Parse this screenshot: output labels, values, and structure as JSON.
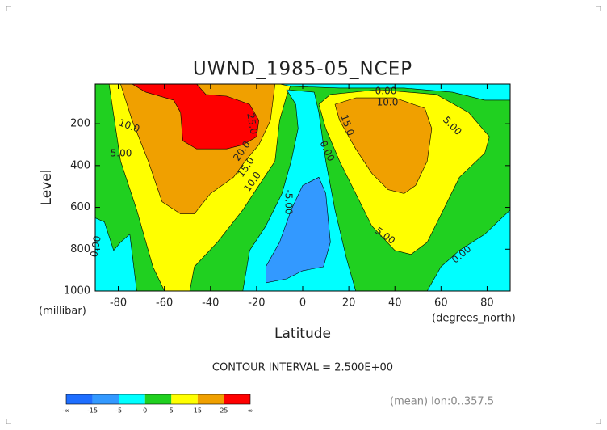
{
  "chart_data": {
    "type": "contour",
    "title": "UWND_1985-05_NCEP",
    "xlabel": "Latitude",
    "ylabel": "Level",
    "xunit": "(degrees_north)",
    "yunit": "(millibar)",
    "note": "CONTOUR INTERVAL = 2.500E+00",
    "footer": "(mean) lon:0..357.5",
    "xlim": [
      -90,
      90
    ],
    "ylim": [
      10,
      1000
    ],
    "xticks": [
      -80,
      -60,
      -40,
      -20,
      0,
      20,
      40,
      60,
      80
    ],
    "yticks": [
      200,
      400,
      600,
      800,
      1000
    ],
    "base_color": "#20d020",
    "regions": [
      {
        "color": "#ffff00",
        "lat": [
          -84,
          -79,
          -72,
          -65,
          -60,
          -49,
          -47,
          -37,
          -26,
          -19,
          -12,
          -10,
          -7,
          -5
        ],
        "level": [
          10,
          379,
          612,
          884,
          1000,
          1000,
          884,
          767,
          612,
          495,
          379,
          184,
          68,
          10
        ]
      },
      {
        "color": "#f0a000",
        "lat": [
          -79,
          -74,
          -67,
          -61,
          -53,
          -47,
          -40,
          -30,
          -25,
          -19,
          -14,
          -12
        ],
        "level": [
          10,
          184,
          379,
          573,
          631,
          631,
          534,
          456,
          379,
          301,
          184,
          10
        ]
      },
      {
        "color": "#ff0000",
        "lat": [
          -74,
          -68,
          -56,
          -53,
          -52,
          -46,
          -33,
          -26,
          -20,
          -19,
          -23,
          -33,
          -42,
          -46
        ],
        "level": [
          10,
          49,
          87,
          146,
          282,
          320,
          320,
          301,
          262,
          184,
          107,
          68,
          60,
          10
        ]
      },
      {
        "color": "#ffff00",
        "lat": [
          7,
          12,
          33,
          58,
          72,
          81,
          79,
          68,
          61,
          54,
          47,
          40,
          30,
          23,
          16,
          10
        ],
        "level": [
          107,
          60,
          37,
          60,
          146,
          262,
          340,
          456,
          612,
          767,
          825,
          806,
          689,
          534,
          379,
          223
        ]
      },
      {
        "color": "#f0a000",
        "lat": [
          14,
          23,
          40,
          53,
          56,
          54,
          49,
          44,
          37,
          30,
          23,
          16
        ],
        "level": [
          107,
          76,
          76,
          126,
          223,
          379,
          495,
          534,
          515,
          437,
          320,
          184
        ]
      },
      {
        "color": "#00ffff",
        "lat": [
          -7,
          -3,
          -2,
          -5,
          -9,
          -16,
          -23,
          -26,
          23,
          19,
          14,
          10,
          7,
          5
        ],
        "level": [
          37,
          107,
          223,
          379,
          534,
          689,
          806,
          1000,
          1000,
          845,
          612,
          379,
          146,
          49
        ]
      },
      {
        "color": "#00ffff",
        "lat": [
          -10,
          90,
          90,
          79,
          65,
          44,
          16,
          -5
        ],
        "level": [
          10,
          10,
          87,
          87,
          49,
          29,
          29,
          21
        ]
      },
      {
        "color": "#00ffff",
        "lat": [
          90,
          79,
          68,
          60,
          54,
          90
        ],
        "level": [
          612,
          728,
          806,
          884,
          1000,
          1000
        ]
      },
      {
        "color": "#00ffff",
        "lat": [
          -90,
          -86,
          -82,
          -79,
          -75,
          -72,
          -90
        ],
        "level": [
          650,
          670,
          806,
          767,
          728,
          1000,
          1000
        ]
      },
      {
        "color": "#3399ff",
        "lat": [
          0,
          7,
          10,
          12,
          9,
          0,
          -7,
          -16,
          -16,
          -10,
          -5
        ],
        "level": [
          495,
          456,
          534,
          767,
          884,
          903,
          942,
          961,
          884,
          767,
          612
        ]
      }
    ],
    "contour_labels": [
      {
        "value": 0,
        "label": "0.00"
      },
      {
        "value": 10,
        "label": "10.0"
      },
      {
        "value": 15,
        "label": "15.0"
      },
      {
        "value": 5,
        "label": "5.00"
      },
      {
        "value": 10,
        "label": "10.0"
      },
      {
        "value": 5,
        "label": "5.00"
      },
      {
        "value": 0,
        "label": "0.00"
      },
      {
        "value": -5,
        "label": "-5.00"
      },
      {
        "value": 5,
        "label": "5.00"
      },
      {
        "value": 0,
        "label": "0.00"
      },
      {
        "value": 0,
        "label": "0.00"
      },
      {
        "value": 25,
        "label": "25.0"
      },
      {
        "value": 20,
        "label": "20.0"
      },
      {
        "value": 15,
        "label": "15.0"
      },
      {
        "value": 10,
        "label": "10.0"
      }
    ],
    "colorbar": {
      "ticks": [
        "-∞",
        -15,
        -5,
        0,
        5,
        15,
        25,
        "∞"
      ],
      "colors": [
        "#1e6eff",
        "#3399ff",
        "#00ffff",
        "#20d020",
        "#ffff00",
        "#f0a000",
        "#ff0000"
      ]
    }
  }
}
